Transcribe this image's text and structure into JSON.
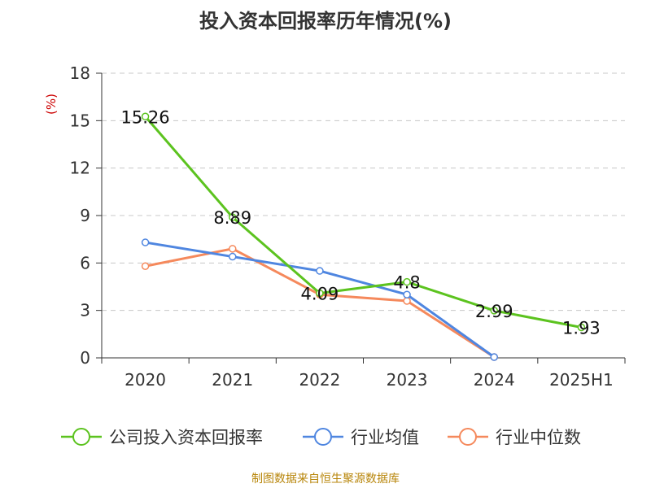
{
  "chart_data": {
    "type": "line",
    "title": "投入资本回报率历年情况(%)",
    "ylabel": "(%)",
    "categories": [
      "2020",
      "2021",
      "2022",
      "2023",
      "2024",
      "2025H1"
    ],
    "ylim": [
      0,
      18
    ],
    "yticks": [
      0,
      3,
      6,
      9,
      12,
      15,
      18
    ],
    "grid": true,
    "legend_position": "bottom",
    "series": [
      {
        "name": "公司投入资本回报率",
        "color": "#5cc31f",
        "values": [
          15.26,
          8.89,
          4.09,
          4.8,
          2.99,
          1.93
        ],
        "labels": [
          "15.26",
          "8.89",
          "4.09",
          "4.8",
          "2.99",
          "1.93"
        ]
      },
      {
        "name": "行业均值",
        "color": "#4f86e0",
        "values": [
          7.3,
          6.4,
          5.5,
          4.0,
          0.05,
          null
        ]
      },
      {
        "name": "行业中位数",
        "color": "#f5895c",
        "values": [
          5.8,
          6.9,
          4.0,
          3.6,
          0.05,
          null
        ]
      }
    ]
  },
  "source": "制图数据来自恒生聚源数据库"
}
